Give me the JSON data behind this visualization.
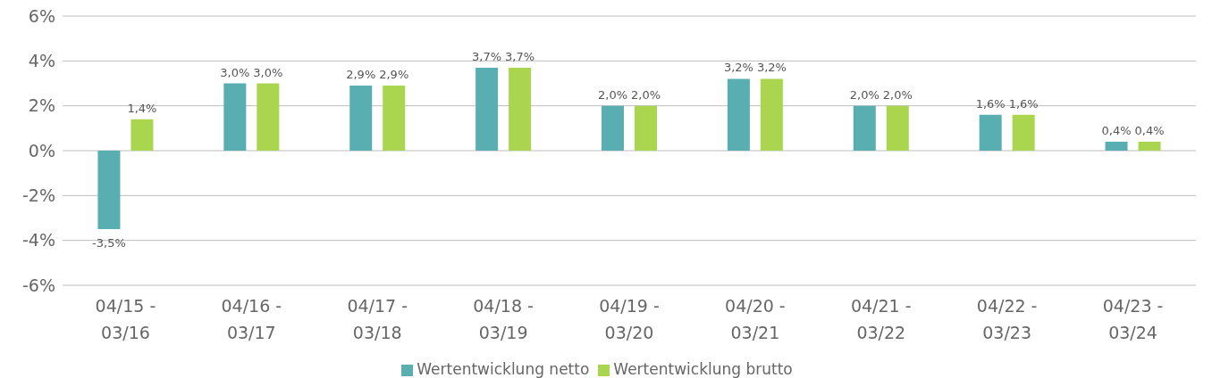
{
  "chart_data": {
    "type": "bar",
    "categories": [
      "04/15 - 03/16",
      "04/16 - 03/17",
      "04/17 - 03/18",
      "04/18 - 03/19",
      "04/19 - 03/20",
      "04/20 - 03/21",
      "04/21 - 03/22",
      "04/22 - 03/23",
      "04/23 - 03/24"
    ],
    "series": [
      {
        "name": "Wertentwicklung netto",
        "color": "#58aeb0",
        "values": [
          -3.5,
          3.0,
          2.9,
          3.7,
          2.0,
          3.2,
          2.0,
          1.6,
          0.4
        ],
        "value_labels": [
          "-3,5%",
          "3,0%",
          "2,9%",
          "3,7%",
          "2,0%",
          "3,2%",
          "2,0%",
          "1,6%",
          "0,4%"
        ]
      },
      {
        "name": "Wertentwicklung brutto",
        "color": "#a9d54f",
        "values": [
          1.4,
          3.0,
          2.9,
          3.7,
          2.0,
          3.2,
          2.0,
          1.6,
          0.4
        ],
        "value_labels": [
          "1,4%",
          "3,0%",
          "2,9%",
          "3,7%",
          "2,0%",
          "3,2%",
          "2,0%",
          "1,6%",
          "0,4%"
        ]
      }
    ],
    "ylim": [
      -6,
      6
    ],
    "yticks": [
      {
        "value": -6,
        "label": "-6%"
      },
      {
        "value": -4,
        "label": "-4%"
      },
      {
        "value": -2,
        "label": "-2%"
      },
      {
        "value": 0,
        "label": "0%"
      },
      {
        "value": 2,
        "label": "2%"
      },
      {
        "value": 4,
        "label": "4%"
      },
      {
        "value": 6,
        "label": "6%"
      }
    ],
    "grid": "y",
    "legend": "bottom"
  }
}
